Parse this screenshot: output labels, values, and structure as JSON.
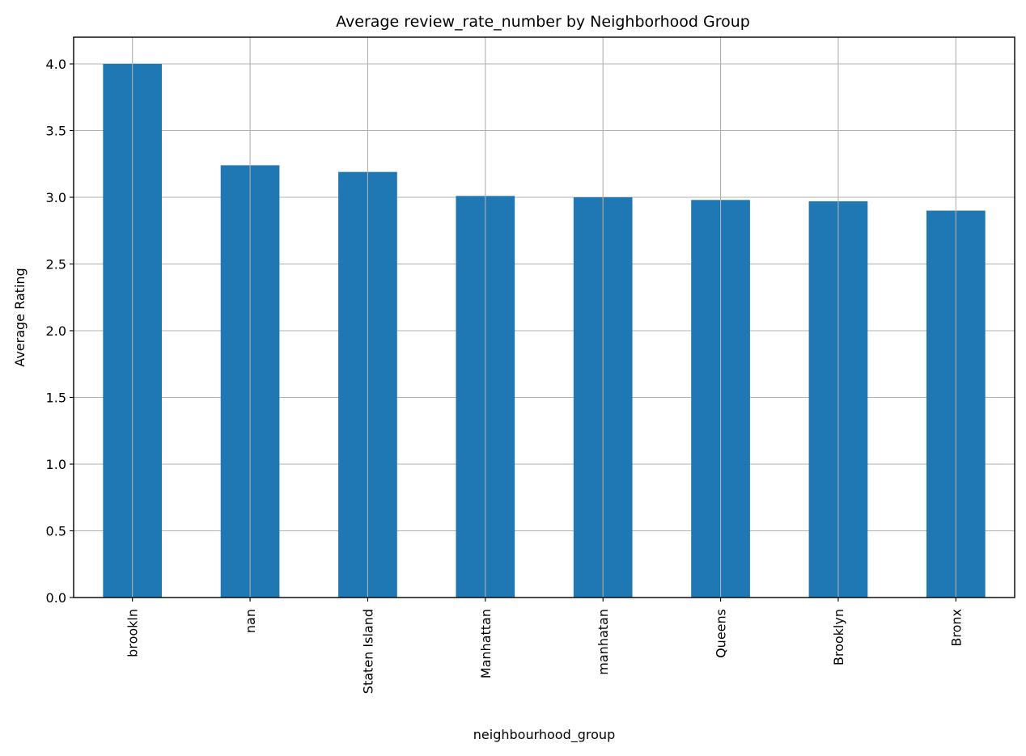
{
  "chart_data": {
    "type": "bar",
    "title": "Average review_rate_number by Neighborhood Group",
    "xlabel": "neighbourhood_group",
    "ylabel": "Average Rating",
    "categories": [
      "brookln",
      "nan",
      "Staten Island",
      "Manhattan",
      "manhatan",
      "Queens",
      "Brooklyn",
      "Bronx"
    ],
    "values": [
      4.0,
      3.24,
      3.19,
      3.01,
      3.0,
      2.98,
      2.97,
      2.9
    ],
    "ylim": [
      0,
      4.2
    ],
    "yticks": [
      0.0,
      0.5,
      1.0,
      1.5,
      2.0,
      2.5,
      3.0,
      3.5,
      4.0
    ],
    "ytick_labels": [
      "0.0",
      "0.5",
      "1.0",
      "1.5",
      "2.0",
      "2.5",
      "3.0",
      "3.5",
      "4.0"
    ],
    "grid": true,
    "colors": {
      "bar": "#1f77b4",
      "grid": "#b0b0b0",
      "axes": "#000000"
    }
  }
}
